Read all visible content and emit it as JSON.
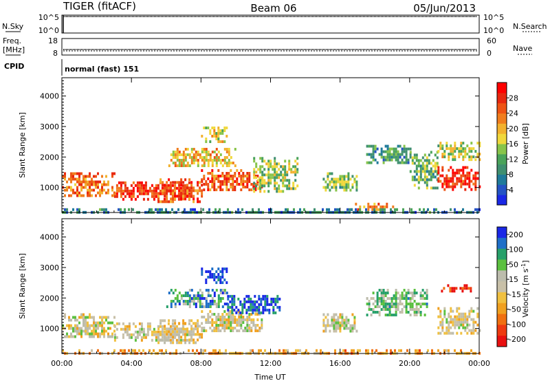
{
  "header": {
    "left": "TIGER (fitACF)",
    "center": "Beam 06",
    "right": "05/Jun/2013"
  },
  "top_panels": {
    "nsky_label": "N.Sky",
    "nsearch_label": "N.Search",
    "freq_label_1": "Freq.",
    "freq_label_2": "[MHz]",
    "nave_label": "Nave",
    "cpid_label": "CPID",
    "cpid_text": "normal (fast) 151",
    "noise_left_ticks": [
      "10^5",
      "10^0"
    ],
    "noise_right_ticks": [
      "10^5",
      "10^0"
    ],
    "freq_left_ticks": [
      "18",
      "8"
    ],
    "freq_right_ticks": [
      "60",
      "0"
    ]
  },
  "chart_data": [
    {
      "type": "heatmap",
      "panel": "power",
      "xlabel": "",
      "ylabel": "Slant Range [km]",
      "x_ticks": [
        "00:00",
        "04:00",
        "08:00",
        "12:00",
        "16:00",
        "20:00",
        "00:00"
      ],
      "xlim_hours": [
        0,
        24
      ],
      "y_ticks": [
        1000,
        2000,
        3000,
        4000
      ],
      "ylim": [
        180,
        4600
      ],
      "colorbar": {
        "label": "Power [dB]",
        "ticks": [
          4,
          8,
          12,
          16,
          20,
          24,
          28
        ],
        "range": [
          0,
          32
        ],
        "colors": [
          "#1a28e6",
          "#2453c4",
          "#1f7a9a",
          "#3f8f70",
          "#4aa35a",
          "#88c44a",
          "#f0d83c",
          "#f2b12e",
          "#f07d1e",
          "#ee5314",
          "#e8280f",
          "#ff0000"
        ]
      },
      "echo_regions": [
        {
          "t0": 0.0,
          "t1": 3.0,
          "r0": 700,
          "r1": 1500,
          "level": 0.75
        },
        {
          "t0": 3.0,
          "t1": 7.5,
          "r0": 650,
          "r1": 1200,
          "level": 0.85
        },
        {
          "t0": 5.5,
          "t1": 8.0,
          "r0": 500,
          "r1": 1300,
          "level": 0.8
        },
        {
          "t0": 8.0,
          "t1": 11.5,
          "r0": 900,
          "r1": 1600,
          "level": 0.8
        },
        {
          "t0": 6.0,
          "t1": 10.0,
          "r0": 1700,
          "r1": 2300,
          "level": 0.6
        },
        {
          "t0": 8.0,
          "t1": 9.5,
          "r0": 2500,
          "r1": 3000,
          "level": 0.55
        },
        {
          "t0": 11.0,
          "t1": 13.5,
          "r0": 900,
          "r1": 2000,
          "level": 0.45
        },
        {
          "t0": 15.0,
          "t1": 17.0,
          "r0": 900,
          "r1": 1500,
          "level": 0.4
        },
        {
          "t0": 16.5,
          "t1": 19.0,
          "r0": 250,
          "r1": 500,
          "level": 0.7
        },
        {
          "t0": 17.5,
          "t1": 20.0,
          "r0": 1800,
          "r1": 2400,
          "level": 0.3
        },
        {
          "t0": 20.0,
          "t1": 21.6,
          "r0": 1000,
          "r1": 2200,
          "level": 0.4
        },
        {
          "t0": 21.6,
          "t1": 24.0,
          "r0": 900,
          "r1": 1700,
          "level": 0.9
        },
        {
          "t0": 21.6,
          "t1": 24.0,
          "r0": 1900,
          "r1": 2500,
          "level": 0.5
        },
        {
          "t0": 0.0,
          "t1": 24.0,
          "r0": 180,
          "r1": 320,
          "level": 0.25
        }
      ]
    },
    {
      "type": "heatmap",
      "panel": "velocity",
      "xlabel": "Time UT",
      "ylabel": "Slant Range [km]",
      "x_ticks": [
        "00:00",
        "04:00",
        "08:00",
        "12:00",
        "16:00",
        "20:00",
        "00:00"
      ],
      "xlim_hours": [
        0,
        24
      ],
      "y_ticks": [
        1000,
        2000,
        3000,
        4000
      ],
      "ylim": [
        180,
        4600
      ],
      "colorbar": {
        "label": "Velocity [m s",
        "label_superscript": "-1",
        "label_close": "]",
        "ticks": [
          200,
          100,
          50,
          15,
          -15,
          -50,
          -100,
          -200
        ],
        "colors": [
          "#1a28e6",
          "#1f6fc8",
          "#27a06a",
          "#5cc040",
          "#bcbcac",
          "#c8c0a8",
          "#f0c040",
          "#f0a020",
          "#f07010",
          "#ee3a10",
          "#e81010"
        ]
      },
      "echo_regions": [
        {
          "t0": 0.0,
          "t1": 3.0,
          "r0": 700,
          "r1": 1500,
          "level": 0.5
        },
        {
          "t0": 3.0,
          "t1": 7.5,
          "r0": 650,
          "r1": 1200,
          "level": 0.5
        },
        {
          "t0": 5.5,
          "t1": 8.0,
          "r0": 500,
          "r1": 1300,
          "level": 0.55
        },
        {
          "t0": 8.0,
          "t1": 11.5,
          "r0": 900,
          "r1": 1600,
          "level": 0.5
        },
        {
          "t0": 6.0,
          "t1": 9.5,
          "r0": 1700,
          "r1": 2300,
          "level": 0.25
        },
        {
          "t0": 9.5,
          "t1": 12.5,
          "r0": 1500,
          "r1": 2100,
          "level": 0.1
        },
        {
          "t0": 8.0,
          "t1": 9.5,
          "r0": 2500,
          "r1": 3000,
          "level": 0.05
        },
        {
          "t0": 15.0,
          "t1": 17.0,
          "r0": 900,
          "r1": 1500,
          "level": 0.5
        },
        {
          "t0": 17.5,
          "t1": 21.0,
          "r0": 1400,
          "r1": 2300,
          "level": 0.35
        },
        {
          "t0": 21.6,
          "t1": 24.0,
          "r0": 800,
          "r1": 1700,
          "level": 0.5
        },
        {
          "t0": 21.8,
          "t1": 23.5,
          "r0": 2250,
          "r1": 2450,
          "level": 0.95
        },
        {
          "t0": 0.0,
          "t1": 24.0,
          "r0": 180,
          "r1": 320,
          "level": 0.65
        }
      ]
    }
  ]
}
